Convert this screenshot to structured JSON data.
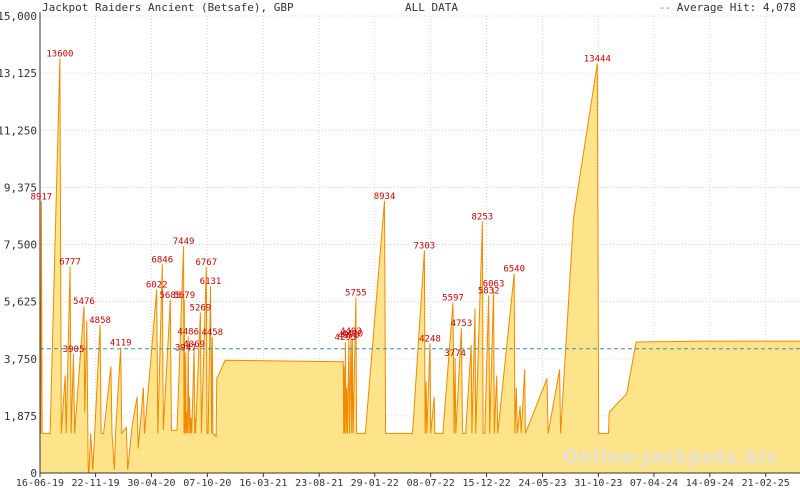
{
  "header": {
    "title": "Jackpot Raiders Ancient (Betsafe), GBP",
    "subtitle": "ALL DATA",
    "avg_text": "Average Hit: 4,078"
  },
  "watermark": "Online-Jackpots.biz",
  "colors": {
    "fill": "#fde38a",
    "line": "#f08a00",
    "label": "#cc0000",
    "avg_line": "#3a8fb0",
    "grid": "#d8d8d8"
  },
  "chart_data": {
    "type": "area",
    "title": "Jackpot Raiders Ancient (Betsafe), GBP",
    "subtitle": "ALL DATA",
    "ylim": [
      0,
      15000
    ],
    "yticks": [
      0,
      1875,
      3750,
      5625,
      7500,
      9375,
      11250,
      13125,
      15000
    ],
    "ytick_labels": [
      "0",
      "1,875",
      "3,750",
      "5,625",
      "7,500",
      "9,375",
      "11,250",
      "13,125",
      "15,000"
    ],
    "xlim": [
      "2019-06-16",
      "2025-05-30"
    ],
    "xticks": [
      "2019-06-16",
      "2019-11-22",
      "2020-04-30",
      "2020-10-07",
      "2021-03-16",
      "2021-08-23",
      "2022-01-29",
      "2022-07-08",
      "2022-12-15",
      "2023-05-24",
      "2023-10-31",
      "2024-04-07",
      "2024-09-14",
      "2025-02-21"
    ],
    "xtick_labels": [
      "16-06-19",
      "22-11-19",
      "30-04-20",
      "07-10-20",
      "16-03-21",
      "23-08-21",
      "29-01-22",
      "08-07-22",
      "15-12-22",
      "24-05-23",
      "31-10-23",
      "07-04-24",
      "14-09-24",
      "21-02-25"
    ],
    "average_hit": 4078,
    "legend": "top-right",
    "grid": true,
    "series": [
      {
        "points": [
          [
            "2019-06-16",
            6200
          ],
          [
            "2019-06-18",
            1300
          ],
          [
            "2019-06-20",
            8917
          ],
          [
            "2019-06-22",
            1300
          ],
          [
            "2019-07-15",
            1300
          ],
          [
            "2019-08-12",
            13600
          ],
          [
            "2019-08-16",
            1300
          ],
          [
            "2019-08-27",
            3200
          ],
          [
            "2019-08-30",
            1300
          ],
          [
            "2019-09-10",
            6777
          ],
          [
            "2019-09-13",
            1300
          ],
          [
            "2019-09-20",
            3905
          ],
          [
            "2019-09-23",
            1300
          ],
          [
            "2019-10-20",
            5476
          ],
          [
            "2019-10-22",
            2000
          ],
          [
            "2019-10-28",
            5000
          ],
          [
            "2019-11-01",
            100
          ],
          [
            "2019-11-03",
            0
          ],
          [
            "2019-11-08",
            1300
          ],
          [
            "2019-11-14",
            100
          ],
          [
            "2019-12-05",
            4858
          ],
          [
            "2019-12-08",
            1300
          ],
          [
            "2019-12-15",
            1300
          ],
          [
            "2020-01-05",
            3500
          ],
          [
            "2020-01-08",
            1300
          ],
          [
            "2020-01-15",
            100
          ],
          [
            "2020-01-18",
            1300
          ],
          [
            "2020-02-02",
            4119
          ],
          [
            "2020-02-05",
            1300
          ],
          [
            "2020-02-18",
            1500
          ],
          [
            "2020-02-22",
            100
          ],
          [
            "2020-03-05",
            1500
          ],
          [
            "2020-03-20",
            2500
          ],
          [
            "2020-03-23",
            800
          ],
          [
            "2020-04-07",
            2800
          ],
          [
            "2020-04-10",
            1300
          ],
          [
            "2020-05-15",
            6022
          ],
          [
            "2020-05-18",
            1300
          ],
          [
            "2020-05-31",
            6846
          ],
          [
            "2020-06-03",
            1400
          ],
          [
            "2020-06-23",
            5685
          ],
          [
            "2020-06-26",
            1400
          ],
          [
            "2020-07-12",
            1400
          ],
          [
            "2020-07-31",
            7449
          ],
          [
            "2020-08-01",
            1300
          ],
          [
            "2020-08-02",
            5679
          ],
          [
            "2020-08-03",
            1300
          ],
          [
            "2020-08-04",
            3200
          ],
          [
            "2020-08-05",
            1300
          ],
          [
            "2020-08-06",
            3947
          ],
          [
            "2020-08-07",
            1300
          ],
          [
            "2020-08-09",
            2000
          ],
          [
            "2020-08-11",
            1300
          ],
          [
            "2020-08-13",
            4486
          ],
          [
            "2020-08-15",
            1300
          ],
          [
            "2020-08-17",
            2500
          ],
          [
            "2020-08-19",
            1300
          ],
          [
            "2020-08-21",
            1800
          ],
          [
            "2020-08-23",
            1300
          ],
          [
            "2020-08-30",
            4069
          ],
          [
            "2020-09-01",
            1300
          ],
          [
            "2020-09-02",
            1800
          ],
          [
            "2020-09-03",
            1300
          ],
          [
            "2020-09-17",
            5269
          ],
          [
            "2020-09-20",
            1300
          ],
          [
            "2020-10-04",
            6767
          ],
          [
            "2020-10-06",
            1300
          ],
          [
            "2020-10-09",
            1300
          ],
          [
            "2020-10-16",
            6131
          ],
          [
            "2020-10-19",
            1300
          ],
          [
            "2020-10-21",
            4458
          ],
          [
            "2020-10-23",
            1300
          ],
          [
            "2020-11-01",
            1200
          ],
          [
            "2020-11-03",
            3100
          ],
          [
            "2020-11-27",
            3700
          ],
          [
            "2021-10-31",
            3650
          ],
          [
            "2021-11-01",
            1300
          ],
          [
            "2021-11-02",
            3500
          ],
          [
            "2021-11-04",
            1300
          ],
          [
            "2021-11-06",
            4295
          ],
          [
            "2021-11-08",
            1300
          ],
          [
            "2021-11-10",
            2800
          ],
          [
            "2021-11-12",
            1300
          ],
          [
            "2021-11-16",
            4370
          ],
          [
            "2021-11-18",
            1300
          ],
          [
            "2021-11-22",
            4493
          ],
          [
            "2021-11-24",
            1300
          ],
          [
            "2021-11-26",
            4420
          ],
          [
            "2021-11-28",
            1300
          ],
          [
            "2021-12-06",
            5755
          ],
          [
            "2021-12-08",
            1300
          ],
          [
            "2021-12-22",
            1300
          ],
          [
            "2022-01-02",
            1300
          ],
          [
            "2022-02-26",
            8934
          ],
          [
            "2022-03-01",
            1300
          ],
          [
            "2022-03-10",
            1300
          ],
          [
            "2022-04-13",
            1300
          ],
          [
            "2022-05-17",
            1300
          ],
          [
            "2022-06-20",
            7303
          ],
          [
            "2022-06-22",
            1300
          ],
          [
            "2022-06-25",
            3000
          ],
          [
            "2022-06-27",
            1300
          ],
          [
            "2022-07-06",
            4248
          ],
          [
            "2022-07-08",
            1300
          ],
          [
            "2022-07-18",
            2500
          ],
          [
            "2022-07-20",
            1300
          ],
          [
            "2022-08-12",
            1300
          ],
          [
            "2022-09-10",
            5597
          ],
          [
            "2022-09-13",
            1300
          ],
          [
            "2022-09-16",
            3774
          ],
          [
            "2022-09-18",
            1300
          ],
          [
            "2022-10-04",
            4753
          ],
          [
            "2022-10-07",
            1300
          ],
          [
            "2022-10-16",
            1300
          ],
          [
            "2022-11-01",
            4200
          ],
          [
            "2022-11-03",
            1300
          ],
          [
            "2022-11-12",
            5400
          ],
          [
            "2022-11-14",
            1300
          ],
          [
            "2022-12-03",
            8253
          ],
          [
            "2022-12-05",
            1300
          ],
          [
            "2022-12-10",
            1300
          ],
          [
            "2022-12-21",
            5832
          ],
          [
            "2022-12-24",
            1300
          ],
          [
            "2023-01-04",
            6063
          ],
          [
            "2023-01-06",
            1300
          ],
          [
            "2023-01-13",
            3200
          ],
          [
            "2023-01-16",
            1300
          ],
          [
            "2023-03-04",
            6540
          ],
          [
            "2023-03-06",
            1300
          ],
          [
            "2023-03-10",
            2800
          ],
          [
            "2023-03-13",
            1300
          ],
          [
            "2023-03-21",
            2200
          ],
          [
            "2023-03-24",
            1300
          ],
          [
            "2023-04-03",
            3400
          ],
          [
            "2023-04-05",
            1300
          ],
          [
            "2023-06-06",
            3100
          ],
          [
            "2023-06-09",
            1300
          ],
          [
            "2023-07-12",
            3400
          ],
          [
            "2023-07-15",
            1300
          ],
          [
            "2023-08-21",
            8400
          ],
          [
            "2023-10-28",
            13444
          ],
          [
            "2023-11-01",
            1300
          ],
          [
            "2023-11-29",
            1300
          ],
          [
            "2023-12-01",
            2000
          ],
          [
            "2024-01-20",
            2600
          ],
          [
            "2024-02-16",
            4300
          ],
          [
            "2024-09-01",
            4330
          ],
          [
            "2025-05-30",
            4330
          ]
        ]
      }
    ],
    "annotations": [
      {
        "x": "2019-06-20",
        "y": 8917,
        "text": "8917"
      },
      {
        "x": "2019-08-12",
        "y": 13600,
        "text": "13600"
      },
      {
        "x": "2019-09-10",
        "y": 6777,
        "text": "6777"
      },
      {
        "x": "2019-09-20",
        "y": 3905,
        "text": "3905"
      },
      {
        "x": "2019-10-20",
        "y": 5476,
        "text": "5476"
      },
      {
        "x": "2019-12-05",
        "y": 4858,
        "text": "4858"
      },
      {
        "x": "2020-02-02",
        "y": 4119,
        "text": "4119"
      },
      {
        "x": "2020-05-15",
        "y": 6022,
        "text": "6022"
      },
      {
        "x": "2020-05-31",
        "y": 6846,
        "text": "6846"
      },
      {
        "x": "2020-06-23",
        "y": 5685,
        "text": "5685"
      },
      {
        "x": "2020-07-31",
        "y": 7449,
        "text": "7449"
      },
      {
        "x": "2020-08-02",
        "y": 5679,
        "text": "5679"
      },
      {
        "x": "2020-08-06",
        "y": 3947,
        "text": "3947"
      },
      {
        "x": "2020-08-13",
        "y": 4486,
        "text": "4486"
      },
      {
        "x": "2020-08-30",
        "y": 4069,
        "text": "4069"
      },
      {
        "x": "2020-09-17",
        "y": 5269,
        "text": "5269"
      },
      {
        "x": "2020-10-04",
        "y": 6767,
        "text": "6767"
      },
      {
        "x": "2020-10-16",
        "y": 6131,
        "text": "6131"
      },
      {
        "x": "2020-10-21",
        "y": 4458,
        "text": "4458"
      },
      {
        "x": "2021-11-06",
        "y": 4295,
        "text": "4295"
      },
      {
        "x": "2021-11-16",
        "y": 4370,
        "text": "4370"
      },
      {
        "x": "2021-11-22",
        "y": 4493,
        "text": "4493"
      },
      {
        "x": "2021-11-26",
        "y": 4420,
        "text": "4420"
      },
      {
        "x": "2021-12-06",
        "y": 5755,
        "text": "5755"
      },
      {
        "x": "2022-02-26",
        "y": 8934,
        "text": "8934"
      },
      {
        "x": "2022-06-20",
        "y": 7303,
        "text": "7303"
      },
      {
        "x": "2022-07-06",
        "y": 4248,
        "text": "4248"
      },
      {
        "x": "2022-09-10",
        "y": 5597,
        "text": "5597"
      },
      {
        "x": "2022-09-16",
        "y": 3774,
        "text": "3774"
      },
      {
        "x": "2022-10-04",
        "y": 4753,
        "text": "4753"
      },
      {
        "x": "2022-12-03",
        "y": 8253,
        "text": "8253"
      },
      {
        "x": "2022-12-21",
        "y": 5832,
        "text": "5832"
      },
      {
        "x": "2023-01-04",
        "y": 6063,
        "text": "6063"
      },
      {
        "x": "2023-03-04",
        "y": 6540,
        "text": "6540"
      },
      {
        "x": "2023-10-28",
        "y": 13444,
        "text": "13444"
      }
    ]
  }
}
